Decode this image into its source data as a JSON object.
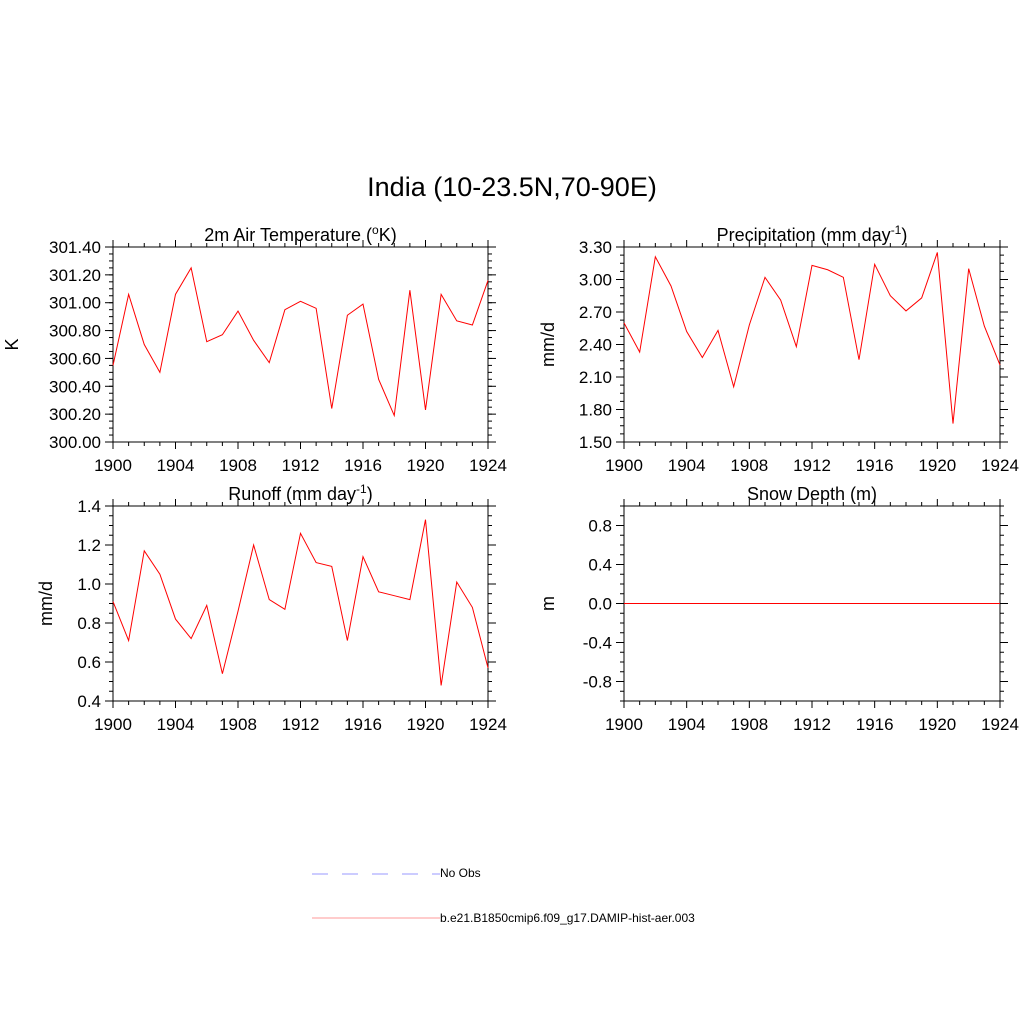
{
  "title": "India (10-23.5N,70-90E)",
  "colors": {
    "model_line": "#ff0000",
    "obs_line": "#9999ff",
    "axis": "#000000"
  },
  "legend": {
    "obs_label": "No Obs",
    "model_label": "b.e21.B1850cmip6.f09_g17.DAMIP-hist-aer.003"
  },
  "chart_data": [
    {
      "type": "line",
      "title": "2m Air Temperature",
      "title_unit_base": "K",
      "ylabel": "K",
      "xlim": [
        1900,
        1924
      ],
      "ylim": [
        300.0,
        301.4
      ],
      "xticks": [
        1900,
        1904,
        1908,
        1912,
        1916,
        1920,
        1924
      ],
      "yticks": [
        300.0,
        300.2,
        300.4,
        300.6,
        300.8,
        301.0,
        301.2,
        301.4
      ],
      "ytick_labels": [
        "300.00",
        "300.20",
        "300.40",
        "300.60",
        "300.80",
        "301.00",
        "301.20",
        "301.40"
      ],
      "x": [
        1900,
        1901,
        1902,
        1903,
        1904,
        1905,
        1906,
        1907,
        1908,
        1909,
        1910,
        1911,
        1912,
        1913,
        1914,
        1915,
        1916,
        1917,
        1918,
        1919,
        1920,
        1921,
        1922,
        1923,
        1924
      ],
      "series": [
        {
          "values": [
            300.55,
            301.06,
            300.7,
            300.5,
            301.06,
            301.25,
            300.72,
            300.77,
            300.94,
            300.73,
            300.57,
            300.95,
            301.01,
            300.96,
            300.24,
            300.91,
            300.99,
            300.45,
            300.19,
            301.09,
            300.23,
            301.06,
            300.87,
            300.84,
            301.16
          ]
        }
      ]
    },
    {
      "type": "line",
      "title": "Precipitation (mm day",
      "ylabel": "mm/d",
      "xlim": [
        1900,
        1924
      ],
      "ylim": [
        1.5,
        3.3
      ],
      "xticks": [
        1900,
        1904,
        1908,
        1912,
        1916,
        1920,
        1924
      ],
      "yticks": [
        1.5,
        1.8,
        2.1,
        2.4,
        2.7,
        3.0,
        3.3
      ],
      "ytick_labels": [
        "1.50",
        "1.80",
        "2.10",
        "2.40",
        "2.70",
        "3.00",
        "3.30"
      ],
      "x": [
        1900,
        1901,
        1902,
        1903,
        1904,
        1905,
        1906,
        1907,
        1908,
        1909,
        1910,
        1911,
        1912,
        1913,
        1914,
        1915,
        1916,
        1917,
        1918,
        1919,
        1920,
        1921,
        1922,
        1923,
        1924
      ],
      "series": [
        {
          "values": [
            2.6,
            2.33,
            3.21,
            2.94,
            2.52,
            2.28,
            2.53,
            2.01,
            2.58,
            3.02,
            2.81,
            2.38,
            3.13,
            3.09,
            3.02,
            2.26,
            3.14,
            2.85,
            2.71,
            2.83,
            3.25,
            1.67,
            3.1,
            2.57,
            2.21
          ]
        }
      ]
    },
    {
      "type": "line",
      "title": "Runoff (mm day",
      "ylabel": "mm/d",
      "xlim": [
        1900,
        1924
      ],
      "ylim": [
        0.4,
        1.4
      ],
      "xticks": [
        1900,
        1904,
        1908,
        1912,
        1916,
        1920,
        1924
      ],
      "yticks": [
        0.4,
        0.6,
        0.8,
        1.0,
        1.2,
        1.4
      ],
      "ytick_labels": [
        "0.4",
        "0.6",
        "0.8",
        "1.0",
        "1.2",
        "1.4"
      ],
      "x": [
        1900,
        1901,
        1902,
        1903,
        1904,
        1905,
        1906,
        1907,
        1908,
        1909,
        1910,
        1911,
        1912,
        1913,
        1914,
        1915,
        1916,
        1917,
        1918,
        1919,
        1920,
        1921,
        1922,
        1923,
        1924
      ],
      "series": [
        {
          "values": [
            0.91,
            0.71,
            1.17,
            1.05,
            0.82,
            0.72,
            0.89,
            0.54,
            0.86,
            1.2,
            0.92,
            0.87,
            1.26,
            1.11,
            1.09,
            0.71,
            1.14,
            0.96,
            0.94,
            0.92,
            1.33,
            0.48,
            1.01,
            0.88,
            0.57
          ]
        }
      ]
    },
    {
      "type": "line",
      "title": "Snow Depth (m)",
      "ylabel": "m",
      "xlim": [
        1900,
        1924
      ],
      "ylim": [
        -1.0,
        1.0
      ],
      "xticks": [
        1900,
        1904,
        1908,
        1912,
        1916,
        1920,
        1924
      ],
      "yticks": [
        -0.8,
        -0.4,
        0.0,
        0.4,
        0.8
      ],
      "ytick_labels": [
        "-0.8",
        "-0.4",
        "0.0",
        "0.4",
        "0.8"
      ],
      "x": [
        1900,
        1901,
        1902,
        1903,
        1904,
        1905,
        1906,
        1907,
        1908,
        1909,
        1910,
        1911,
        1912,
        1913,
        1914,
        1915,
        1916,
        1917,
        1918,
        1919,
        1920,
        1921,
        1922,
        1923,
        1924
      ],
      "series": [
        {
          "values": [
            0,
            0,
            0,
            0,
            0,
            0,
            0,
            0,
            0,
            0,
            0,
            0,
            0,
            0,
            0,
            0,
            0,
            0,
            0,
            0,
            0,
            0,
            0,
            0,
            0
          ]
        }
      ]
    }
  ]
}
